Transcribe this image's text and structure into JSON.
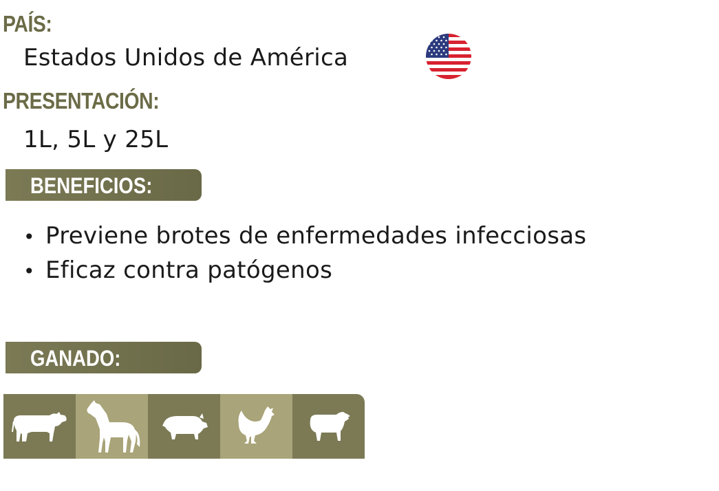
{
  "country": {
    "label": "PAÍS:",
    "value": "Estados Unidos de América",
    "flag_icon": "usa-flag-icon"
  },
  "presentation": {
    "label": "PRESENTACIÓN:",
    "value": "1L, 5L y 25L"
  },
  "benefits": {
    "label": "BENEFICIOS:",
    "items": [
      "Previene brotes de enfermedades infecciosas",
      "Eficaz contra patógenos"
    ]
  },
  "livestock": {
    "label": "GANADO:",
    "animals": [
      {
        "icon": "cow-icon"
      },
      {
        "icon": "horse-icon"
      },
      {
        "icon": "pig-icon"
      },
      {
        "icon": "chicken-icon"
      },
      {
        "icon": "sheep-icon"
      }
    ]
  },
  "colors": {
    "heading": "#6b6b47",
    "pill": "#7b7a55",
    "tile_dark": "#7b7a55",
    "tile_light": "#a9a479"
  }
}
